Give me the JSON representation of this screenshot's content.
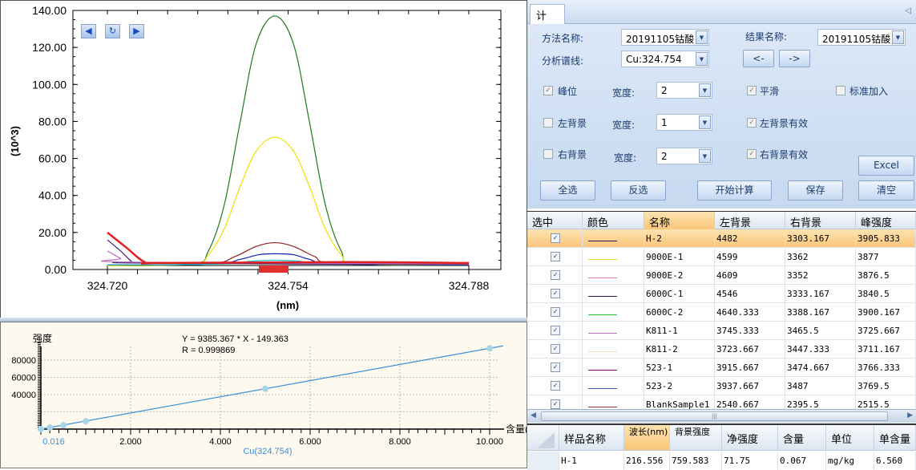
{
  "spectrum_chart": {
    "type": "line",
    "ylabel": "(10^3)",
    "xlabel": "(nm)",
    "ylim": [
      0,
      140
    ],
    "xlim": [
      324.72,
      324.788
    ],
    "yticks": [
      "0.00",
      "20.00",
      "40.00",
      "60.00",
      "80.00",
      "100.00",
      "120.00",
      "140.00"
    ],
    "xticks": [
      "324.720",
      "324.754",
      "324.788"
    ],
    "nav_icons": [
      "arrow-left-icon",
      "refresh-icon",
      "arrow-right-icon"
    ],
    "series": [
      {
        "color": "#1e7a1e",
        "points": [
          [
            324.72,
            2
          ],
          [
            324.736,
            3
          ],
          [
            324.739,
            10
          ],
          [
            324.742,
            35
          ],
          [
            324.745,
            80
          ],
          [
            324.748,
            122
          ],
          [
            324.7515,
            137
          ],
          [
            324.755,
            122
          ],
          [
            324.758,
            80
          ],
          [
            324.761,
            35
          ],
          [
            324.764,
            10
          ],
          [
            324.767,
            3
          ],
          [
            324.788,
            2.5
          ]
        ]
      },
      {
        "color": "#f0e000",
        "points": [
          [
            324.72,
            2
          ],
          [
            324.736,
            3
          ],
          [
            324.739,
            8
          ],
          [
            324.742,
            22
          ],
          [
            324.745,
            45
          ],
          [
            324.748,
            64
          ],
          [
            324.7515,
            71.5
          ],
          [
            324.755,
            64
          ],
          [
            324.758,
            45
          ],
          [
            324.761,
            22
          ],
          [
            324.764,
            8
          ],
          [
            324.767,
            3
          ],
          [
            324.788,
            2.5
          ]
        ]
      },
      {
        "color": "#8b2020",
        "points": [
          [
            324.72,
            2.5
          ],
          [
            324.739,
            3
          ],
          [
            324.744,
            7
          ],
          [
            324.748,
            12.5
          ],
          [
            324.7515,
            14.5
          ],
          [
            324.755,
            12.5
          ],
          [
            324.759,
            7
          ],
          [
            324.763,
            3.5
          ],
          [
            324.788,
            3
          ]
        ]
      },
      {
        "color": "#1020b0",
        "points": [
          [
            324.72,
            2.5
          ],
          [
            324.74,
            3
          ],
          [
            324.745,
            5.5
          ],
          [
            324.7485,
            8
          ],
          [
            324.7515,
            8.5
          ],
          [
            324.755,
            8
          ],
          [
            324.758,
            5.5
          ],
          [
            324.763,
            3
          ],
          [
            324.788,
            2.5
          ]
        ]
      },
      {
        "color": "#20c0d0",
        "points": [
          [
            324.72,
            2.5
          ],
          [
            324.742,
            3
          ],
          [
            324.747,
            4.5
          ],
          [
            324.7515,
            5
          ],
          [
            324.756,
            4.5
          ],
          [
            324.761,
            3
          ],
          [
            324.788,
            2.5
          ]
        ]
      },
      {
        "color": "#402070",
        "points": [
          [
            324.72,
            16
          ],
          [
            324.7225,
            10
          ],
          [
            324.7245,
            4.5
          ],
          [
            324.726,
            3.5
          ],
          [
            324.788,
            2.5
          ]
        ]
      },
      {
        "color": "#c070c0",
        "points": [
          [
            324.72,
            10
          ],
          [
            324.7225,
            6
          ],
          [
            324.724,
            4
          ],
          [
            324.788,
            3
          ]
        ]
      },
      {
        "color": "#e02020",
        "points": [
          [
            324.72,
            20
          ],
          [
            324.7235,
            12
          ],
          [
            324.727,
            4
          ],
          [
            324.73,
            3.5
          ],
          [
            324.765,
            4
          ],
          [
            324.788,
            3.5
          ]
        ]
      }
    ]
  },
  "calibration_chart": {
    "type": "scatter",
    "ylabel": "强度",
    "xlabel": "含量(",
    "x_title": "Cu(324.754)",
    "equation": "Y = 9385.367 * X - 149.363",
    "r_text": "R = 0.999869",
    "yticks": [
      "40000",
      "60000",
      "80000"
    ],
    "xticks": [
      "0.016",
      "2.000",
      "4.000",
      "6.000",
      "8.000",
      "10.000"
    ],
    "xlim": [
      0,
      10.3
    ],
    "ylim": [
      0,
      100000
    ],
    "grid": true,
    "slope": 9385.367,
    "intercept": -149.363,
    "line_color": "#3d8fd8",
    "point_color": "#a8d4ea",
    "x": [
      0,
      0.2,
      0.5,
      1.0,
      5.0,
      10.0
    ],
    "y": [
      0,
      1700,
      4500,
      9200,
      46800,
      93700
    ]
  },
  "panel": {
    "tab": "计 算",
    "collapse_icon": "collapse-left-icon",
    "method_label": "方法名称:",
    "method_value": "20191105钴酸",
    "result_label": "结果名称:",
    "result_value": "20191105钴酸",
    "line_label": "分析谱线:",
    "line_value": "Cu:324.754",
    "prev": "<-",
    "next": "->",
    "peak": {
      "label": "峰位",
      "checked": true,
      "width_label": "宽度:",
      "width": "2"
    },
    "left_bg": {
      "label": "左背景",
      "checked": false,
      "width_label": "宽度:",
      "width": "1"
    },
    "right_bg": {
      "label": "右背景",
      "checked": false,
      "width_label": "宽度:",
      "width": "2"
    },
    "smooth": {
      "label": "平滑",
      "checked": true
    },
    "std_add": {
      "label": "标准加入",
      "checked": false
    },
    "left_valid": {
      "label": "左背景有效",
      "checked": true
    },
    "right_valid": {
      "label": "右背景有效",
      "checked": true
    },
    "buttons": {
      "select_all": "全选",
      "invert": "反选",
      "calc": "开始计算",
      "save": "保存",
      "clear": "清空",
      "excel": "Excel"
    }
  },
  "grid": {
    "headers": [
      "选中",
      "颜色",
      "名称",
      "左背景",
      "右背景",
      "峰强度"
    ],
    "rows": [
      {
        "checked": true,
        "color": "#1a1060",
        "name": "H-2",
        "left": "4482",
        "right": "3303.167",
        "peak": "3905.833"
      },
      {
        "checked": true,
        "color": "#e8d820",
        "name": "9000E-1",
        "left": "4599",
        "right": "3362",
        "peak": "3877"
      },
      {
        "checked": true,
        "color": "#e070b0",
        "name": "9000E-2",
        "left": "4609",
        "right": "3352",
        "peak": "3876.5"
      },
      {
        "checked": true,
        "color": "#2a1060",
        "name": "6000C-1",
        "left": "4546",
        "right": "3333.167",
        "peak": "3840.5"
      },
      {
        "checked": true,
        "color": "#20c030",
        "name": "6000C-2",
        "left": "4640.333",
        "right": "3388.167",
        "peak": "3900.167"
      },
      {
        "checked": true,
        "color": "#c070c8",
        "name": "K811-1",
        "left": "3745.333",
        "right": "3465.5",
        "peak": "3725.667"
      },
      {
        "checked": true,
        "color": "#f0e0c8",
        "name": "K811-2",
        "left": "3723.667",
        "right": "3447.333",
        "peak": "3711.167"
      },
      {
        "checked": true,
        "color": "#800070",
        "name": "523-1",
        "left": "3915.667",
        "right": "3474.667",
        "peak": "3766.333"
      },
      {
        "checked": true,
        "color": "#3060b0",
        "name": "523-2",
        "left": "3937.667",
        "right": "3487",
        "peak": "3769.5"
      },
      {
        "checked": true,
        "color": "#903030",
        "name": "BlankSample1",
        "left": "2540.667",
        "right": "2395.5",
        "peak": "2515.5"
      }
    ]
  },
  "result_grid": {
    "headers": [
      "样品名称",
      "波长(nm)",
      "背景强度",
      "净强度",
      "含量",
      "单位",
      "单含量"
    ],
    "rows": [
      [
        "H-1",
        "216.556",
        "759.583",
        "71.75",
        "0.067",
        "mg/kg",
        "6.560"
      ]
    ]
  }
}
